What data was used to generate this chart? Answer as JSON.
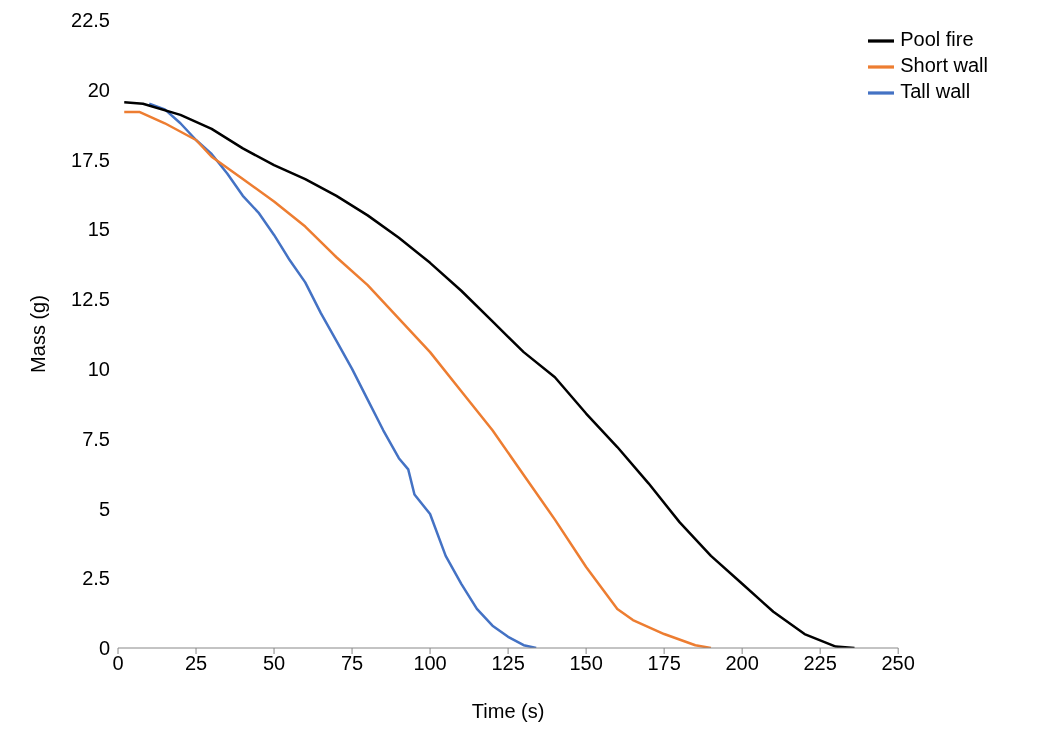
{
  "chart_data": {
    "type": "line",
    "xlabel": "Time (s)",
    "ylabel": "Mass (g)",
    "xlim": [
      0,
      250
    ],
    "xticks": [
      0,
      25,
      50,
      75,
      100,
      125,
      150,
      175,
      200,
      225,
      250
    ],
    "ylim": [
      0,
      22.5
    ],
    "yticks": [
      0,
      2.5,
      5,
      7.5,
      10,
      12.5,
      15,
      17.5,
      20,
      22.5
    ],
    "grid": false,
    "legend": "top right",
    "marker": "none",
    "line_style": "solid",
    "series": [
      {
        "name": "Tall wall",
        "color": "#4472c4",
        "x": [
          10,
          15,
          20,
          25,
          30,
          35,
          40,
          45,
          50,
          55,
          60,
          65,
          70,
          75,
          80,
          85,
          90,
          93,
          95,
          100,
          105,
          110,
          115,
          120,
          125,
          130,
          134
        ],
        "values": [
          19.5,
          19.3,
          18.8,
          18.2,
          17.7,
          17,
          16.2,
          15.6,
          14.8,
          13.9,
          13.1,
          12,
          11,
          10,
          8.9,
          7.8,
          6.8,
          6.4,
          5.5,
          4.8,
          3.3,
          2.3,
          1.4,
          0.8,
          0.4,
          0.1,
          0
        ]
      },
      {
        "name": "Short wall",
        "color": "#ed7d31",
        "x": [
          2,
          7,
          15,
          25,
          30,
          40,
          50,
          60,
          70,
          80,
          90,
          100,
          110,
          120,
          130,
          140,
          150,
          160,
          165,
          175,
          185,
          190
        ],
        "values": [
          19.2,
          19.2,
          18.8,
          18.2,
          17.6,
          16.8,
          16,
          15.1,
          14,
          13,
          11.8,
          10.6,
          9.2,
          7.8,
          6.2,
          4.6,
          2.9,
          1.4,
          1,
          0.5,
          0.1,
          0
        ]
      },
      {
        "name": "Pool fire",
        "color": "#000000",
        "x": [
          2,
          8,
          20,
          30,
          40,
          50,
          60,
          70,
          80,
          90,
          100,
          110,
          120,
          130,
          140,
          150,
          160,
          170,
          180,
          190,
          200,
          210,
          220,
          230,
          236
        ],
        "values": [
          19.55,
          19.5,
          19.1,
          18.6,
          17.9,
          17.3,
          16.8,
          16.2,
          15.5,
          14.7,
          13.8,
          12.8,
          11.7,
          10.6,
          9.7,
          8.4,
          7.2,
          5.9,
          4.5,
          3.3,
          2.3,
          1.3,
          0.5,
          0.05,
          0
        ]
      }
    ]
  }
}
